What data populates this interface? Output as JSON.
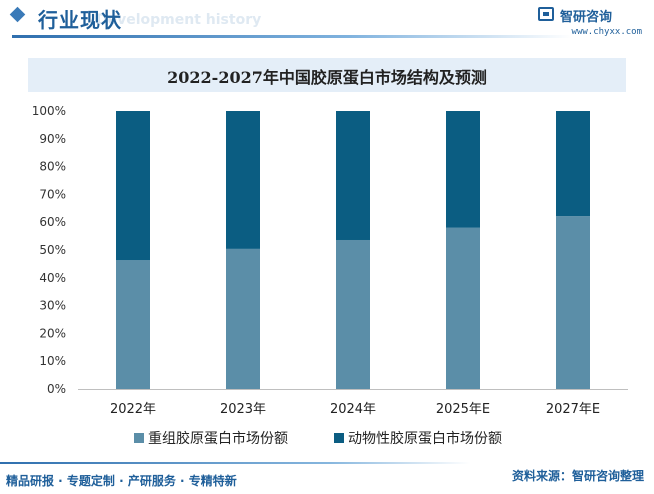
{
  "header": {
    "title": "行业现状",
    "subtitle": "Development history",
    "brand_name": "智研咨询",
    "brand_url": "www.chyxx.com"
  },
  "chart_title": "2022-2027年中国胶原蛋白市场结构及预测",
  "colors": {
    "series_1": "#5b8ea8",
    "series_2": "#0b5d82",
    "accent": "#1f5f9a"
  },
  "chart_data": {
    "type": "bar",
    "stacked": true,
    "title": "2022-2027年中国胶原蛋白市场结构及预测",
    "categories": [
      "2022年",
      "2023年",
      "2024年",
      "2025年E",
      "2027年E"
    ],
    "series": [
      {
        "name": "重组胶原蛋白市场份额",
        "values": [
          46.4,
          50.4,
          53.6,
          58.0,
          62.2
        ]
      },
      {
        "name": "动物性胶原蛋白市场份额",
        "values": [
          53.6,
          49.6,
          46.4,
          42.0,
          37.8
        ]
      }
    ],
    "ylim": [
      0,
      100
    ],
    "yticks": [
      "0%",
      "10%",
      "20%",
      "30%",
      "40%",
      "50%",
      "60%",
      "70%",
      "80%",
      "90%",
      "100%"
    ],
    "grid": false,
    "legend": "bottom"
  },
  "footer": {
    "left": "精品研报 · 专题定制 · 产研服务 · 专精特新",
    "right": "资料来源：智研咨询整理"
  }
}
